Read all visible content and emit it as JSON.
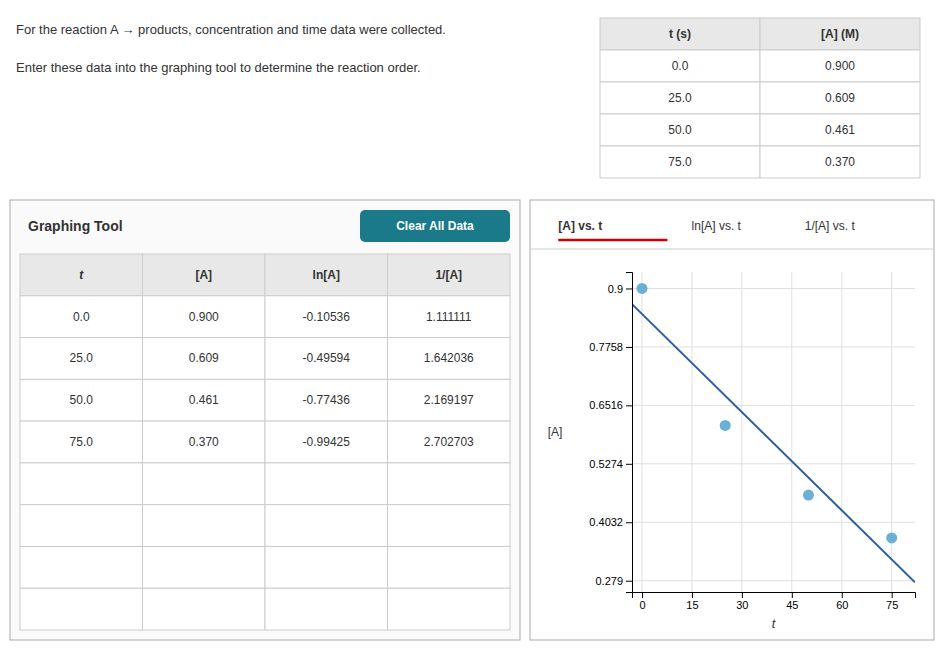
{
  "chart_data": [
    {
      "type": "table",
      "title": "For the reaction A → products, concentration and time data were collected.",
      "subtitle": "Enter these data into the graphing tool to determine the reaction order.",
      "columns": [
        "t (s)",
        "[A] (M)"
      ],
      "rows": [
        [
          "0.0",
          "0.900"
        ],
        [
          "25.0",
          "0.609"
        ],
        [
          "50.0",
          "0.461"
        ],
        [
          "75.0",
          "0.370"
        ]
      ]
    },
    {
      "type": "table",
      "title": "Graphing Tool",
      "columns": [
        "t",
        "[A]",
        "ln[A]",
        "1/[A]"
      ],
      "rows": [
        [
          "0.0",
          "0.900",
          "-0.10536",
          "1.111111"
        ],
        [
          "25.0",
          "0.609",
          "-0.49594",
          "1.642036"
        ],
        [
          "50.0",
          "0.461",
          "-0.77436",
          "2.169197"
        ],
        [
          "75.0",
          "0.370",
          "-0.99425",
          "2.702703"
        ]
      ],
      "annotations": [
        {
          "text": "Clear All Data",
          "color": "#1a7a8a"
        }
      ]
    },
    {
      "type": "scatter",
      "annotations": [
        {
          "text": "[A] vs. t",
          "color": "#cc0000"
        },
        {
          "text": "ln[A] vs. t"
        },
        {
          "text": "1/[A] vs. t"
        }
      ],
      "x_label": "t",
      "y_label": "[A]",
      "xlim": [
        -3,
        82
      ],
      "ylim": [
        0.255,
        0.935
      ],
      "xticks": [
        0,
        15,
        30,
        45,
        60,
        75
      ],
      "yticks": [
        0.279,
        0.4032,
        0.5274,
        0.6516,
        0.7758,
        0.9
      ],
      "grid": true,
      "series": [
        {
          "type": "line",
          "color": "#2a5fa5",
          "x": [
            -3,
            82
          ],
          "values": [
            0.866556,
            0.275636
          ]
        },
        {
          "type": "scatter",
          "color": "#6aafd4",
          "x": [
            0.0,
            25.0,
            50.0,
            75.0
          ],
          "values": [
            0.9,
            0.609,
            0.461,
            0.37
          ]
        }
      ]
    }
  ]
}
